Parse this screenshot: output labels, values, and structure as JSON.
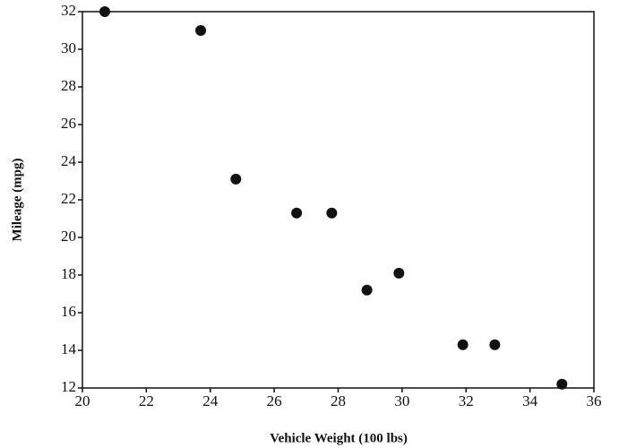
{
  "chart_data": {
    "type": "scatter",
    "x_label": "Vehicle Weight (100 lbs)",
    "y_label": "Mileage (mpg)",
    "x": [
      20.7,
      23.7,
      24.8,
      26.7,
      27.8,
      28.9,
      29.9,
      31.9,
      32.9,
      35.0
    ],
    "values": [
      32,
      31,
      23.1,
      21.3,
      21.3,
      17.2,
      18.1,
      14.3,
      14.3,
      12.2
    ],
    "color": "#111111",
    "xlim": [
      20,
      36
    ],
    "xticks": [
      20,
      22,
      24,
      26,
      28,
      30,
      32,
      34,
      36
    ],
    "ylim": [
      12,
      32
    ],
    "yticks": [
      12,
      14,
      16,
      18,
      20,
      22,
      24,
      26,
      28,
      30,
      32
    ],
    "grid": false
  }
}
